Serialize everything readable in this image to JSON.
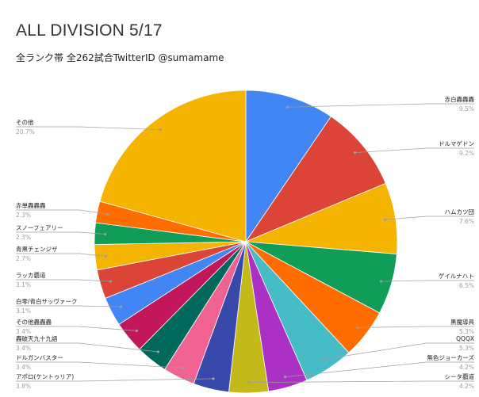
{
  "chart_data": {
    "type": "pie",
    "title": "ALL DIVISION 5/17",
    "subtitle": "全ランク帯 全262試合TwitterID @sumamame",
    "slices": [
      {
        "label": "赤白轟轟轟",
        "pct_label": "9.5%",
        "value": 9.5,
        "color": "#4285f4"
      },
      {
        "label": "ドルマゲドン",
        "pct_label": "9.2%",
        "value": 9.2,
        "color": "#db4437"
      },
      {
        "label": "ハムカツ団",
        "pct_label": "7.6%",
        "value": 7.6,
        "color": "#f4b400"
      },
      {
        "label": "ゲイルナハト",
        "pct_label": "6.5%",
        "value": 6.5,
        "color": "#0f9d58"
      },
      {
        "label": "黒魔導具",
        "pct_label": "5.3%",
        "value": 5.3,
        "color": "#ff6d01"
      },
      {
        "label": "QQQX",
        "pct_label": "5.3%",
        "value": 5.3,
        "color": "#46bdc6"
      },
      {
        "label": "無色ジョーカーズ",
        "pct_label": "4.2%",
        "value": 4.2,
        "color": "#ab30c4"
      },
      {
        "label": "シータ覇道",
        "pct_label": "4.2%",
        "value": 4.2,
        "color": "#c3b91a"
      },
      {
        "label": "アポロ(ケントゥリア)",
        "pct_label": "3.8%",
        "value": 3.8,
        "color": "#3949ab"
      },
      {
        "label": "ドルガンバスター",
        "pct_label": "3.4%",
        "value": 3.4,
        "color": "#f06292"
      },
      {
        "label": "轟破天九十九語",
        "pct_label": "3.4%",
        "value": 3.4,
        "color": "#00695c"
      },
      {
        "label": "その他轟轟轟",
        "pct_label": "3.4%",
        "value": 3.4,
        "color": "#c2185b"
      },
      {
        "label": "白零/青白サッヴァーク",
        "pct_label": "3.1%",
        "value": 3.1,
        "color": "#4285f4"
      },
      {
        "label": "ラッカ覇道",
        "pct_label": "3.1%",
        "value": 3.1,
        "color": "#db4437"
      },
      {
        "label": "青黒チェンジザ",
        "pct_label": "2.7%",
        "value": 2.7,
        "color": "#f4b400"
      },
      {
        "label": "スノーフェアリー",
        "pct_label": "2.3%",
        "value": 2.3,
        "color": "#0f9d58"
      },
      {
        "label": "赤単轟轟轟",
        "pct_label": "2.3%",
        "value": 2.3,
        "color": "#ff6d01"
      },
      {
        "label": "その他",
        "pct_label": "20.7%",
        "value": 20.7,
        "color": "#f4b400"
      }
    ]
  }
}
